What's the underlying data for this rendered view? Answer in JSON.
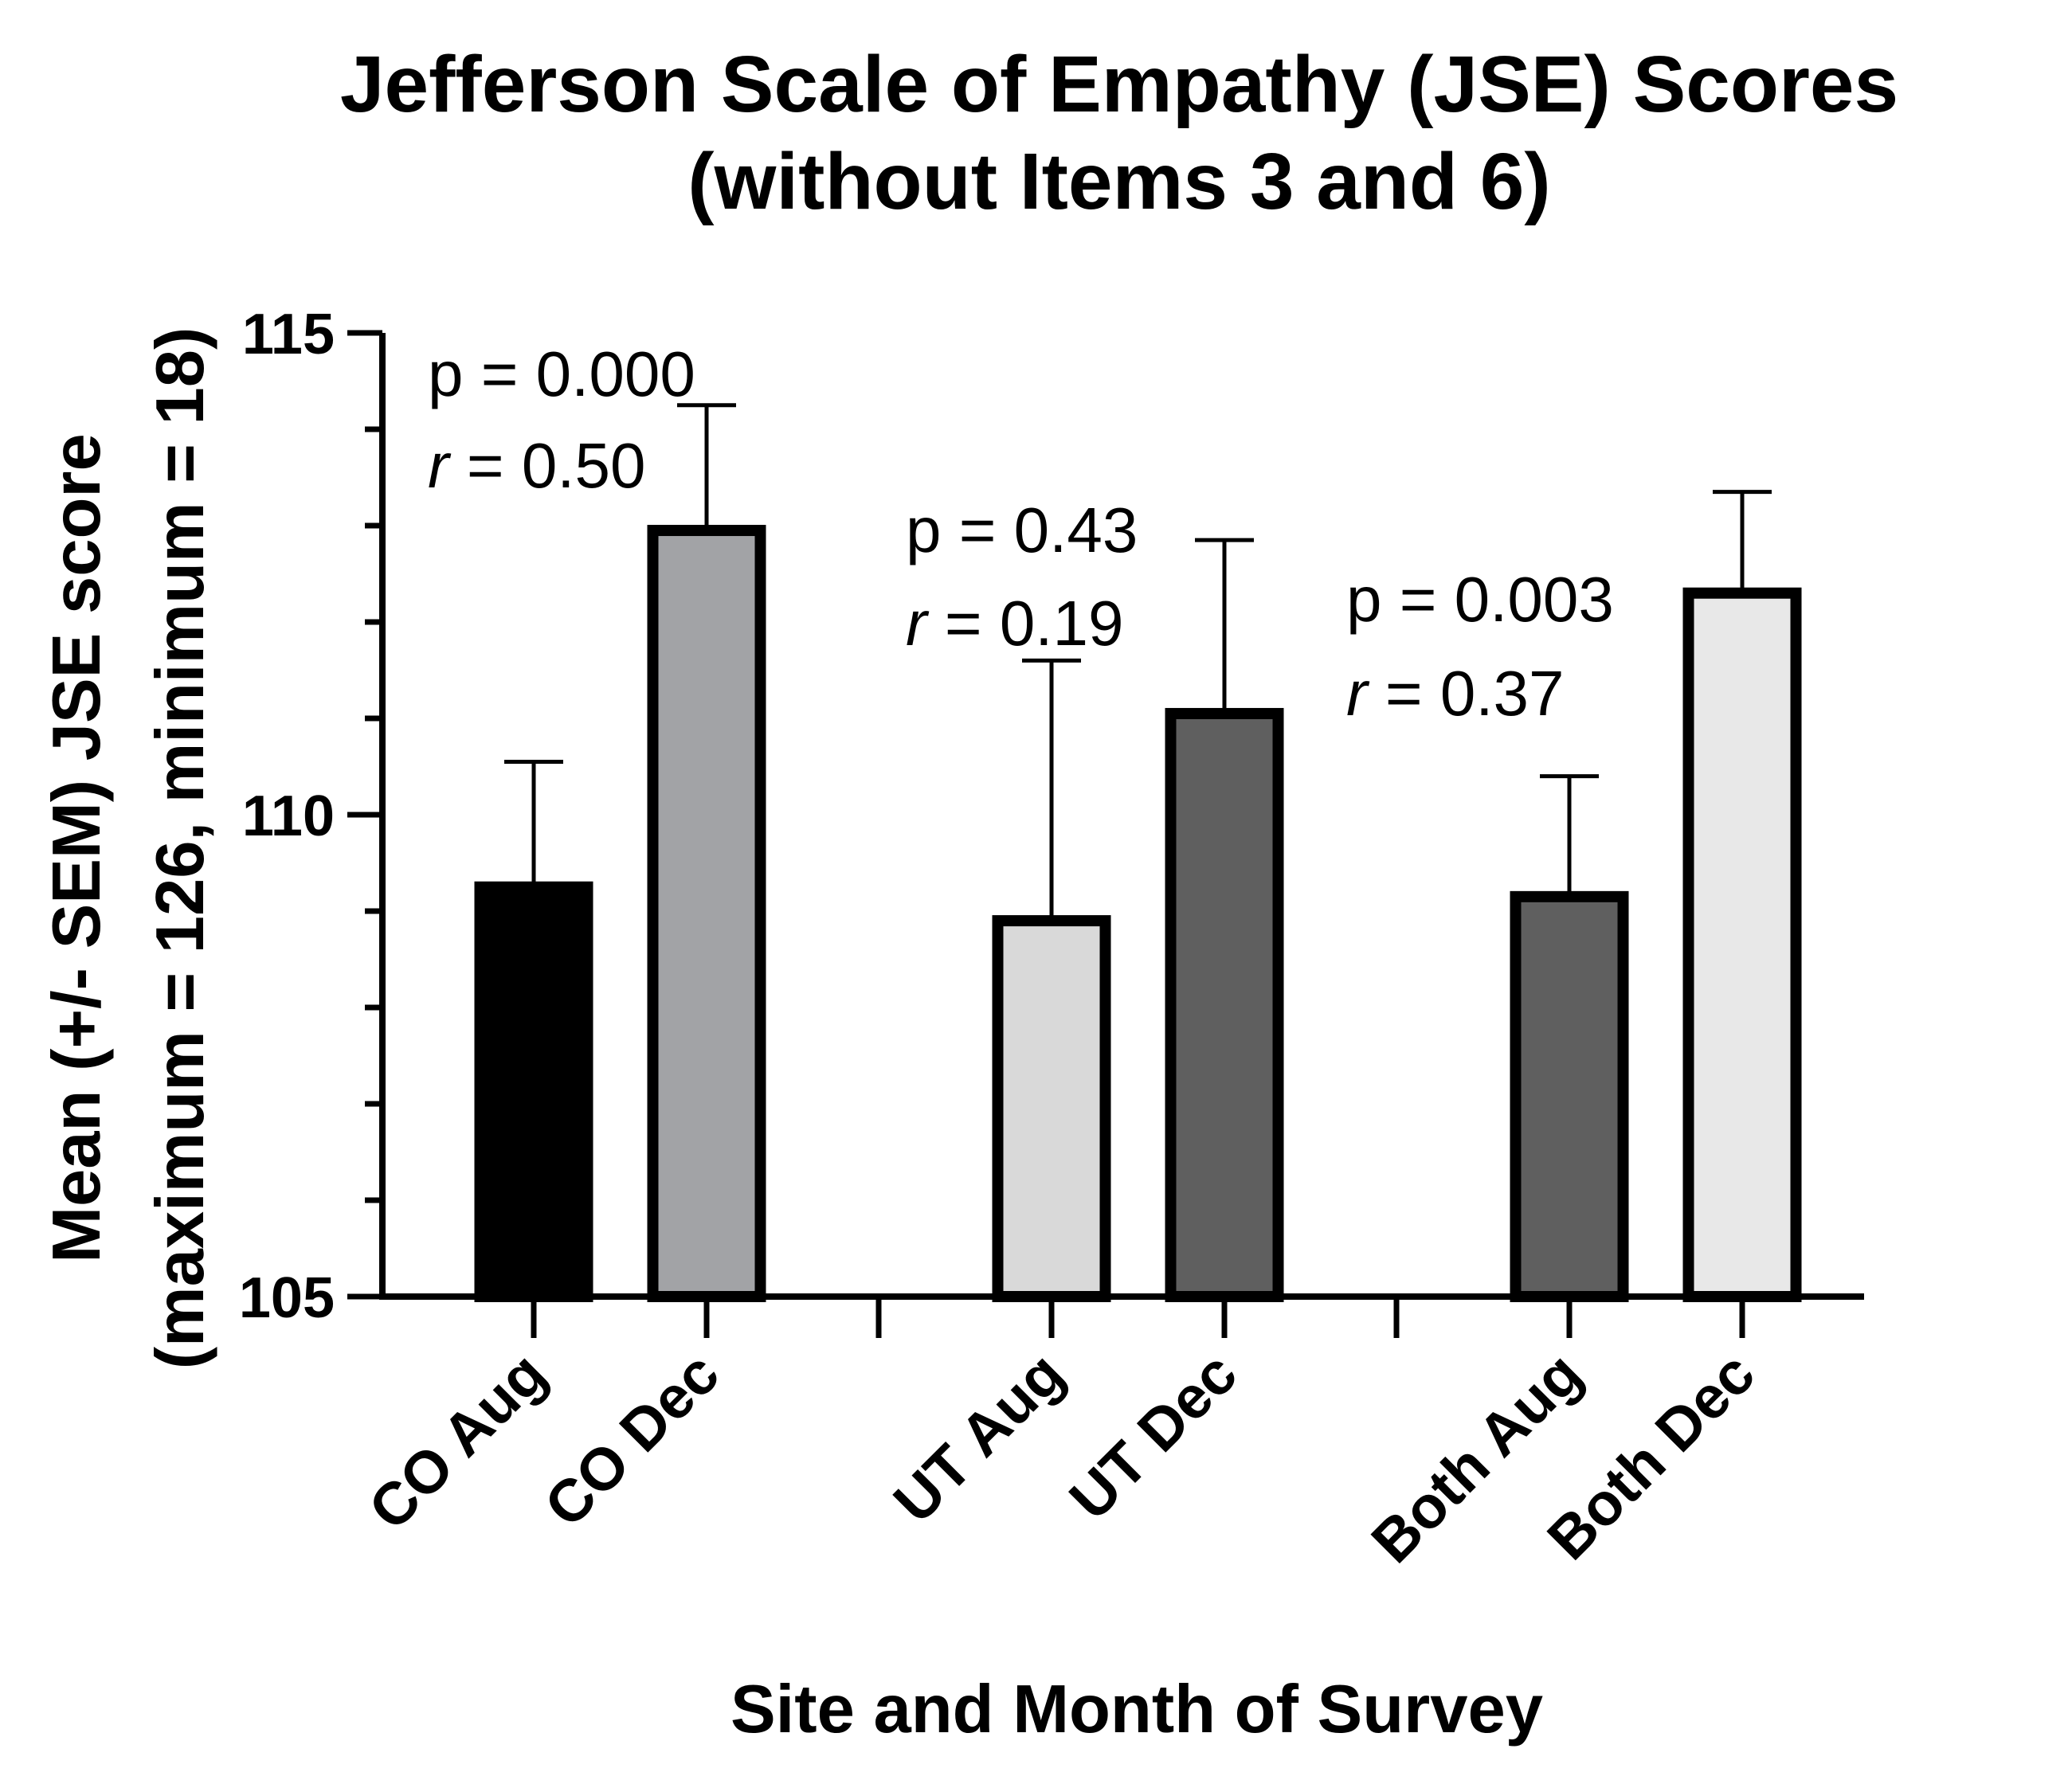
{
  "chart_data": {
    "type": "bar",
    "title_lines": [
      "Jefferson Scale of Empathy (JSE) Scores",
      "(without Items 3 and 6)"
    ],
    "xlabel": "Site and Month of Survey",
    "ylabel_lines": [
      "Mean (+/- SEM) JSE score",
      "(maximum = 126, minimum = 18)"
    ],
    "ylim": [
      105,
      115
    ],
    "yticks": [
      105,
      110,
      115
    ],
    "ytick_labels": [
      "105",
      "110",
      "115"
    ],
    "categories": [
      "CO Aug",
      "CO Dec",
      "UT Aug",
      "UT Dec",
      "Both Aug",
      "Both Dec"
    ],
    "values": [
      109.25,
      112.95,
      108.9,
      111.05,
      109.15,
      112.3
    ],
    "errors": [
      1.3,
      1.3,
      2.7,
      1.8,
      1.25,
      1.05
    ],
    "bar_colors": [
      "#000000",
      "#a2a3a6",
      "#d9d9d9",
      "#5f5f5f",
      "#5f5f5f",
      "#e8e8e8"
    ],
    "annotations": [
      {
        "p_text": "p = 0.000",
        "r_label": "r",
        "r_value": " = 0.50"
      },
      {
        "p_text": "p = 0.43",
        "r_label": "r",
        "r_value": " = 0.19"
      },
      {
        "p_text": "p = 0.003",
        "r_label": "r",
        "r_value": " = 0.37"
      }
    ]
  }
}
